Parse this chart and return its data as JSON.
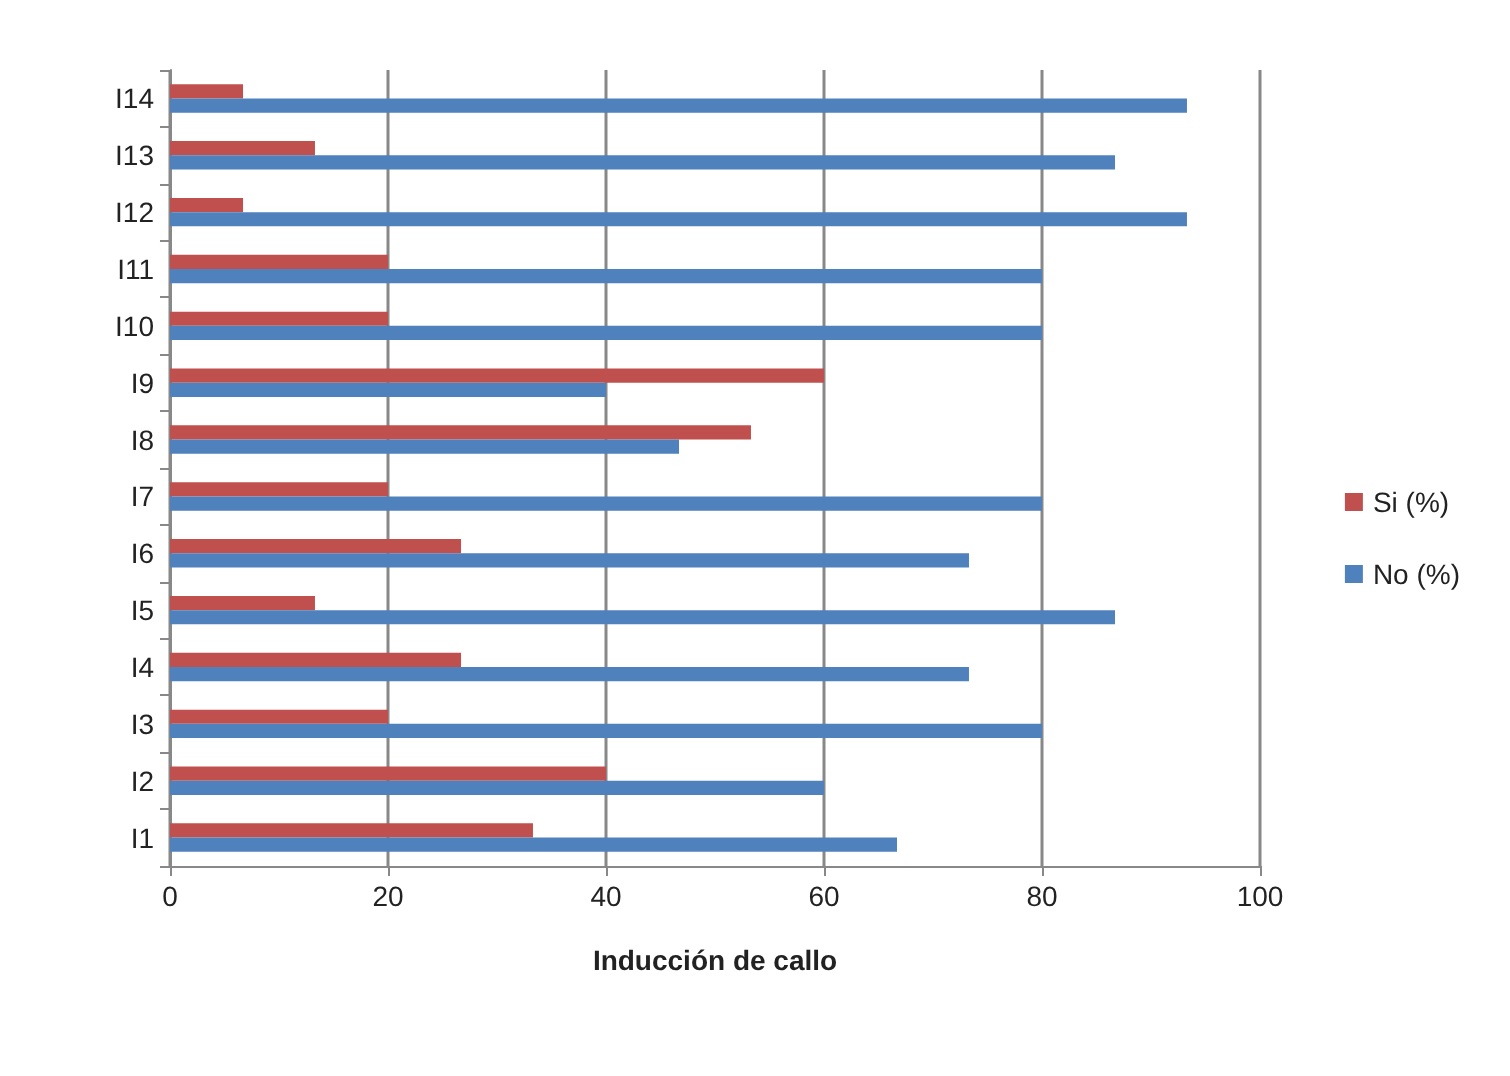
{
  "chart_data": {
    "type": "bar",
    "orientation": "horizontal",
    "xlabel": "Inducción de callo",
    "categories": [
      "I14",
      "I13",
      "I12",
      "I11",
      "I10",
      "I9",
      "I8",
      "I7",
      "I6",
      "I5",
      "I4",
      "I3",
      "I2",
      "I1"
    ],
    "series": [
      {
        "name": "Si (%)",
        "color": "#c0504d",
        "values": [
          6.7,
          13.3,
          6.7,
          20,
          20,
          60,
          53.3,
          20,
          26.7,
          13.3,
          26.7,
          20,
          40,
          33.3
        ]
      },
      {
        "name": "No (%)",
        "color": "#4f81bd",
        "values": [
          93.3,
          86.7,
          93.3,
          80,
          80,
          40,
          46.7,
          80,
          73.3,
          86.7,
          73.3,
          80,
          60,
          66.7
        ]
      }
    ],
    "xlim": [
      0,
      100
    ],
    "xticks": [
      0,
      20,
      40,
      60,
      80,
      100
    ],
    "grid": "x",
    "legend": "right"
  }
}
